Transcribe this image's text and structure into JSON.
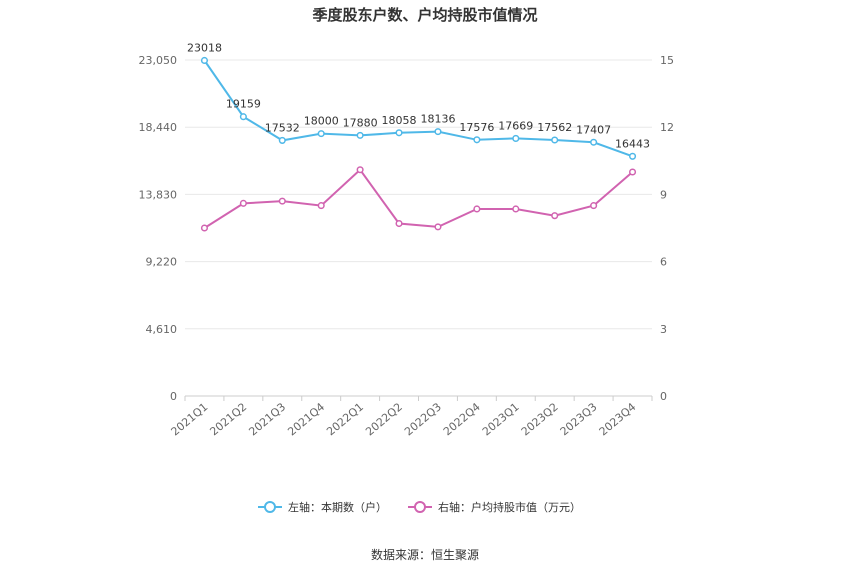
{
  "chart_data": {
    "type": "line",
    "title": "季度股东户数、户均持股市值情况",
    "categories": [
      "2021Q1",
      "2021Q2",
      "2021Q3",
      "2021Q4",
      "2022Q1",
      "2022Q2",
      "2022Q3",
      "2022Q4",
      "2023Q1",
      "2023Q2",
      "2023Q3",
      "2023Q4"
    ],
    "left_axis": {
      "ticks": [
        "0",
        "4,610",
        "9,220",
        "13,830",
        "18,440",
        "23,050"
      ],
      "ylim": [
        0,
        23050
      ]
    },
    "right_axis": {
      "ticks": [
        "0",
        "3",
        "6",
        "9",
        "12",
        "15"
      ],
      "ylim": [
        0,
        15
      ]
    },
    "series": [
      {
        "name": "左轴：本期数（户）",
        "axis": "left",
        "color": "#4fb8e8",
        "values": [
          23018,
          19159,
          17532,
          18000,
          17880,
          18058,
          18136,
          17576,
          17669,
          17562,
          17407,
          16443
        ],
        "labels": [
          "23018",
          "19159",
          "17532",
          "18000",
          "17880",
          "18058",
          "18136",
          "17576",
          "17669",
          "17562",
          "17407",
          "16443"
        ]
      },
      {
        "name": "右轴：户均持股市值（万元）",
        "axis": "right",
        "color": "#d163b0",
        "values": [
          7.5,
          8.6,
          8.7,
          8.5,
          10.1,
          7.7,
          7.55,
          8.35,
          8.35,
          8.05,
          8.5,
          10.0
        ]
      }
    ],
    "grid": true,
    "legend_position": "bottom"
  },
  "footer": {
    "source": "数据来源：恒生聚源"
  }
}
